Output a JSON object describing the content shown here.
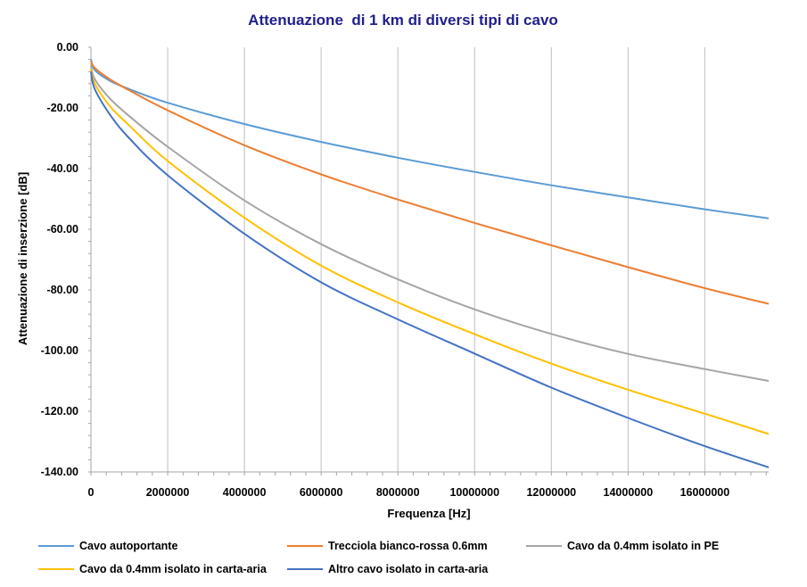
{
  "chart_data": {
    "type": "line",
    "title": "Attenuazione  di 1 km di diversi tipi di cavo",
    "xlabel": "Frequenza [Hz]",
    "ylabel": "Attenuazione di inserzione [dB]",
    "xlim": [
      0,
      17664000
    ],
    "ylim": [
      -140,
      0
    ],
    "xticks": [
      0,
      2000000,
      4000000,
      6000000,
      8000000,
      10000000,
      12000000,
      14000000,
      16000000
    ],
    "xtick_labels": [
      "0",
      "2000000",
      "4000000",
      "6000000",
      "8000000",
      "10000000",
      "12000000",
      "14000000",
      "16000000"
    ],
    "yticks": [
      0,
      -20,
      -40,
      -60,
      -80,
      -100,
      -120,
      -140
    ],
    "ytick_labels": [
      "0.00",
      "-20.00",
      "-40.00",
      "-60.00",
      "-80.00",
      "-100.00",
      "-120.00",
      "-140.00"
    ],
    "grid": "vertical",
    "legend_position": "bottom",
    "series": [
      {
        "name": "Cavo autoportante",
        "color": "#5b9bd5",
        "x": [
          0,
          100000,
          500000,
          1000000,
          2000000,
          4000000,
          6000000,
          8000000,
          10000000,
          12000000,
          14000000,
          16000000,
          17664000
        ],
        "y": [
          -4,
          -7.5,
          -11.1,
          -13.8,
          -18.3,
          -25.3,
          -31.2,
          -36.4,
          -41.1,
          -45.5,
          -49.5,
          -53.4,
          -56.4
        ]
      },
      {
        "name": "Trecciola bianco-rossa 0.6mm",
        "color": "#ed7d31",
        "x": [
          0,
          100000,
          500000,
          1000000,
          2000000,
          4000000,
          6000000,
          8000000,
          10000000,
          12000000,
          14000000,
          16000000,
          17664000
        ],
        "y": [
          -4.5,
          -6.8,
          -10.6,
          -14.2,
          -20.8,
          -32.3,
          -41.9,
          -50.2,
          -57.9,
          -65.3,
          -72.5,
          -79.4,
          -84.6
        ]
      },
      {
        "name": "Cavo da 0.4mm isolato in PE",
        "color": "#a5a5a5",
        "x": [
          0,
          100000,
          500000,
          1000000,
          2000000,
          4000000,
          6000000,
          8000000,
          10000000,
          12000000,
          14000000,
          16000000,
          17664000
        ],
        "y": [
          -6,
          -10.5,
          -17,
          -22.7,
          -32.8,
          -50.5,
          -64.9,
          -76.5,
          -86.4,
          -94.5,
          -101.1,
          -106.1,
          -110
        ]
      },
      {
        "name": "Cavo da 0.4mm isolato in carta-aria",
        "color": "#ffc000",
        "x": [
          0,
          100000,
          500000,
          1000000,
          2000000,
          4000000,
          6000000,
          8000000,
          10000000,
          12000000,
          14000000,
          16000000,
          17664000
        ],
        "y": [
          -7,
          -12,
          -19.5,
          -25.8,
          -37.5,
          -56.2,
          -72,
          -84.1,
          -94.6,
          -104.3,
          -112.9,
          -120.8,
          -127.5
        ]
      },
      {
        "name": "Altro cavo isolato in carta-aria",
        "color": "#4472c4",
        "x": [
          0,
          100000,
          500000,
          1000000,
          2000000,
          4000000,
          6000000,
          8000000,
          10000000,
          12000000,
          14000000,
          16000000,
          17664000
        ],
        "y": [
          -8,
          -13.8,
          -22.3,
          -30,
          -42.2,
          -61.5,
          -77.5,
          -89.7,
          -101,
          -112.2,
          -122.2,
          -131.5,
          -138.5
        ]
      }
    ]
  }
}
